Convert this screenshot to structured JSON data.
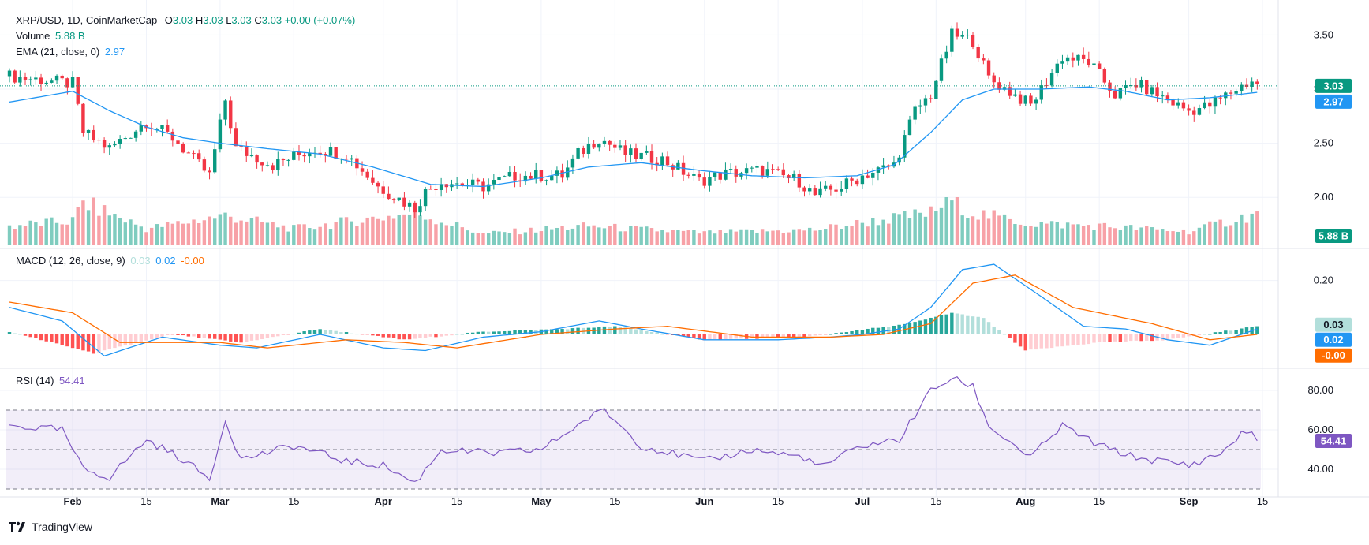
{
  "header": {
    "symbol": "XRP/USD, 1D, CoinMarketCap",
    "open_label": "O",
    "open": "3.03",
    "high_label": "H",
    "high": "3.03",
    "low_label": "L",
    "low": "3.03",
    "close_label": "C",
    "close": "3.03",
    "change": "+0.00 (+0.07%)"
  },
  "volume_legend": {
    "label": "Volume",
    "value": "5.88 B"
  },
  "ema_legend": {
    "label": "EMA (21, close, 0)",
    "value": "2.97"
  },
  "macd_legend": {
    "label": "MACD (12, 26, close, 9)",
    "hist": "0.03",
    "macd": "0.02",
    "signal": "-0.00"
  },
  "rsi_legend": {
    "label": "RSI (14)",
    "value": "54.41"
  },
  "brand": {
    "name": "TradingView"
  },
  "colors": {
    "up": "#089981",
    "down": "#f23645",
    "ema": "#2196f3",
    "macd": "#2196f3",
    "signal": "#ff6d00",
    "rsi": "#7e57c2",
    "vol_up": "#7fccbf",
    "vol_down": "#f7a1a7"
  },
  "chart_data": [
    {
      "type": "candlestick",
      "title": "XRP/USD, 1D, CoinMarketCap",
      "x_tick_labels": [
        "Feb",
        "15",
        "Mar",
        "15",
        "Apr",
        "15",
        "May",
        "15",
        "Jun",
        "15",
        "Jul",
        "15",
        "Aug",
        "15",
        "Sep",
        "15"
      ],
      "x_ticks": [
        "2025-02-01",
        "2025-02-15",
        "2025-03-01",
        "2025-03-15",
        "2025-04-01",
        "2025-04-15",
        "2025-05-01",
        "2025-05-15",
        "2025-06-01",
        "2025-06-15",
        "2025-07-01",
        "2025-07-15",
        "2025-08-01",
        "2025-08-15",
        "2025-09-01",
        "2025-09-15"
      ],
      "y_ticks": [
        "3.50",
        "3.00",
        "2.50",
        "2.00"
      ],
      "ylim": [
        1.55,
        3.75
      ],
      "price_badges": {
        "last": "3.03",
        "ema": "2.97",
        "volume": "5.88 B"
      },
      "series": [
        {
          "name": "Price",
          "x": [
            "2025-01-20",
            "2025-02-01",
            "2025-02-03",
            "2025-02-08",
            "2025-02-15",
            "2025-02-20",
            "2025-02-27",
            "2025-03-02",
            "2025-03-04",
            "2025-03-11",
            "2025-03-19",
            "2025-03-25",
            "2025-03-31",
            "2025-04-07",
            "2025-04-09",
            "2025-04-12",
            "2025-04-20",
            "2025-04-26",
            "2025-05-05",
            "2025-05-08",
            "2025-05-12",
            "2025-05-17",
            "2025-05-24",
            "2025-05-31",
            "2025-06-05",
            "2025-06-12",
            "2025-06-19",
            "2025-06-22",
            "2025-06-27",
            "2025-07-01",
            "2025-07-07",
            "2025-07-11",
            "2025-07-14",
            "2025-07-18",
            "2025-07-22",
            "2025-07-25",
            "2025-08-02",
            "2025-08-08",
            "2025-08-13",
            "2025-08-18",
            "2025-08-22",
            "2025-09-01",
            "2025-09-05",
            "2025-09-10",
            "2025-09-13",
            "2025-09-14"
          ],
          "values": [
            3.12,
            3.05,
            2.6,
            2.45,
            2.7,
            2.55,
            2.2,
            2.9,
            2.45,
            2.3,
            2.45,
            2.4,
            2.1,
            1.9,
            2.05,
            2.15,
            2.1,
            2.2,
            2.2,
            2.4,
            2.55,
            2.4,
            2.35,
            2.15,
            2.22,
            2.25,
            2.15,
            2.02,
            2.1,
            2.2,
            2.3,
            2.8,
            2.95,
            3.5,
            3.45,
            3.1,
            2.85,
            3.3,
            3.25,
            2.95,
            3.05,
            2.8,
            2.85,
            3.0,
            3.08,
            3.03
          ]
        },
        {
          "name": "EMA (21, close, 0)",
          "x": [
            "2025-01-20",
            "2025-02-01",
            "2025-02-08",
            "2025-02-15",
            "2025-02-22",
            "2025-03-01",
            "2025-03-10",
            "2025-03-20",
            "2025-03-30",
            "2025-04-10",
            "2025-04-20",
            "2025-05-01",
            "2025-05-10",
            "2025-05-20",
            "2025-05-31",
            "2025-06-10",
            "2025-06-20",
            "2025-06-30",
            "2025-07-07",
            "2025-07-14",
            "2025-07-20",
            "2025-07-26",
            "2025-08-04",
            "2025-08-13",
            "2025-08-20",
            "2025-08-28",
            "2025-09-05",
            "2025-09-14"
          ],
          "values": [
            2.88,
            2.98,
            2.8,
            2.65,
            2.55,
            2.5,
            2.45,
            2.4,
            2.28,
            2.12,
            2.1,
            2.18,
            2.28,
            2.32,
            2.25,
            2.2,
            2.18,
            2.2,
            2.3,
            2.6,
            2.9,
            3.0,
            3.0,
            3.02,
            2.98,
            2.9,
            2.92,
            2.97
          ]
        }
      ]
    },
    {
      "type": "bar",
      "title": "Volume",
      "series": [
        {
          "name": "Volume",
          "x": [
            "2025-01-20",
            "2025-02-01",
            "2025-02-03",
            "2025-02-15",
            "2025-03-02",
            "2025-03-15",
            "2025-04-07",
            "2025-04-20",
            "2025-05-10",
            "2025-05-31",
            "2025-06-22",
            "2025-07-14",
            "2025-07-18",
            "2025-07-22",
            "2025-08-02",
            "2025-08-15",
            "2025-09-01",
            "2025-09-14"
          ],
          "values": [
            3.5,
            4.5,
            8.0,
            3.0,
            5.5,
            3.0,
            6.0,
            2.0,
            3.5,
            2.2,
            2.8,
            6.0,
            8.5,
            6.0,
            4.0,
            3.5,
            2.5,
            5.88
          ]
        }
      ]
    },
    {
      "type": "line",
      "title": "MACD (12, 26, close, 9)",
      "y_ticks": [
        "0.20"
      ],
      "ylim": [
        -0.12,
        0.31
      ],
      "price_badges": {
        "hist": "0.03",
        "macd": "0.02",
        "signal": "-0.00"
      },
      "series": [
        {
          "name": "MACD",
          "x": [
            "2025-01-20",
            "2025-01-30",
            "2025-02-07",
            "2025-02-18",
            "2025-03-01",
            "2025-03-08",
            "2025-03-20",
            "2025-04-01",
            "2025-04-09",
            "2025-04-20",
            "2025-05-01",
            "2025-05-12",
            "2025-05-20",
            "2025-06-01",
            "2025-06-15",
            "2025-06-25",
            "2025-07-01",
            "2025-07-08",
            "2025-07-14",
            "2025-07-20",
            "2025-07-26",
            "2025-08-04",
            "2025-08-12",
            "2025-08-20",
            "2025-08-28",
            "2025-09-05",
            "2025-09-14"
          ],
          "values": [
            0.1,
            0.05,
            -0.08,
            -0.01,
            -0.04,
            -0.05,
            0.0,
            -0.05,
            -0.06,
            -0.01,
            0.01,
            0.05,
            0.02,
            -0.02,
            -0.02,
            -0.01,
            0.0,
            0.02,
            0.1,
            0.24,
            0.26,
            0.14,
            0.03,
            0.02,
            -0.02,
            -0.04,
            0.02
          ]
        },
        {
          "name": "Signal",
          "x": [
            "2025-01-20",
            "2025-02-01",
            "2025-02-10",
            "2025-02-20",
            "2025-03-01",
            "2025-03-10",
            "2025-03-25",
            "2025-04-05",
            "2025-04-15",
            "2025-05-01",
            "2025-05-15",
            "2025-05-25",
            "2025-06-10",
            "2025-06-25",
            "2025-07-05",
            "2025-07-14",
            "2025-07-22",
            "2025-07-30",
            "2025-08-10",
            "2025-08-25",
            "2025-09-05",
            "2025-09-14"
          ],
          "values": [
            0.12,
            0.08,
            -0.03,
            -0.03,
            -0.03,
            -0.05,
            -0.02,
            -0.03,
            -0.05,
            0.0,
            0.02,
            0.03,
            -0.01,
            -0.01,
            0.0,
            0.04,
            0.19,
            0.22,
            0.1,
            0.04,
            -0.02,
            -0.0
          ]
        },
        {
          "name": "Histogram",
          "x": [
            "2025-01-20",
            "2025-02-05",
            "2025-02-20",
            "2025-03-05",
            "2025-03-20",
            "2025-04-05",
            "2025-04-20",
            "2025-05-05",
            "2025-05-15",
            "2025-06-01",
            "2025-06-20",
            "2025-07-10",
            "2025-07-18",
            "2025-07-24",
            "2025-08-01",
            "2025-08-15",
            "2025-08-28",
            "2025-09-14"
          ],
          "values": [
            0.01,
            -0.07,
            0.0,
            -0.03,
            0.02,
            -0.02,
            0.01,
            0.02,
            0.03,
            -0.02,
            -0.01,
            0.04,
            0.08,
            0.06,
            -0.06,
            -0.03,
            -0.02,
            0.03
          ]
        }
      ]
    },
    {
      "type": "line",
      "title": "RSI (14)",
      "y_ticks": [
        "80.00",
        "60.00",
        "40.00"
      ],
      "ylim": [
        30,
        90
      ],
      "bands": [
        70,
        50,
        30
      ],
      "price_badges": {
        "rsi": "54.41"
      },
      "series": [
        {
          "name": "RSI (14)",
          "x": [
            "2025-01-20",
            "2025-01-30",
            "2025-02-03",
            "2025-02-08",
            "2025-02-15",
            "2025-02-22",
            "2025-02-27",
            "2025-03-02",
            "2025-03-05",
            "2025-03-15",
            "2025-03-25",
            "2025-04-01",
            "2025-04-07",
            "2025-04-12",
            "2025-04-22",
            "2025-05-01",
            "2025-05-10",
            "2025-05-13",
            "2025-05-20",
            "2025-06-01",
            "2025-06-10",
            "2025-06-20",
            "2025-06-23",
            "2025-07-01",
            "2025-07-08",
            "2025-07-14",
            "2025-07-18",
            "2025-07-22",
            "2025-07-25",
            "2025-08-02",
            "2025-08-08",
            "2025-08-15",
            "2025-08-22",
            "2025-09-01",
            "2025-09-07",
            "2025-09-12",
            "2025-09-14"
          ],
          "values": [
            62,
            60,
            40,
            36,
            55,
            45,
            35,
            65,
            45,
            52,
            44,
            42,
            33,
            50,
            48,
            50,
            66,
            70,
            52,
            44,
            50,
            46,
            41,
            52,
            55,
            80,
            86,
            82,
            62,
            46,
            62,
            52,
            46,
            42,
            48,
            60,
            54.41
          ]
        }
      ]
    }
  ]
}
